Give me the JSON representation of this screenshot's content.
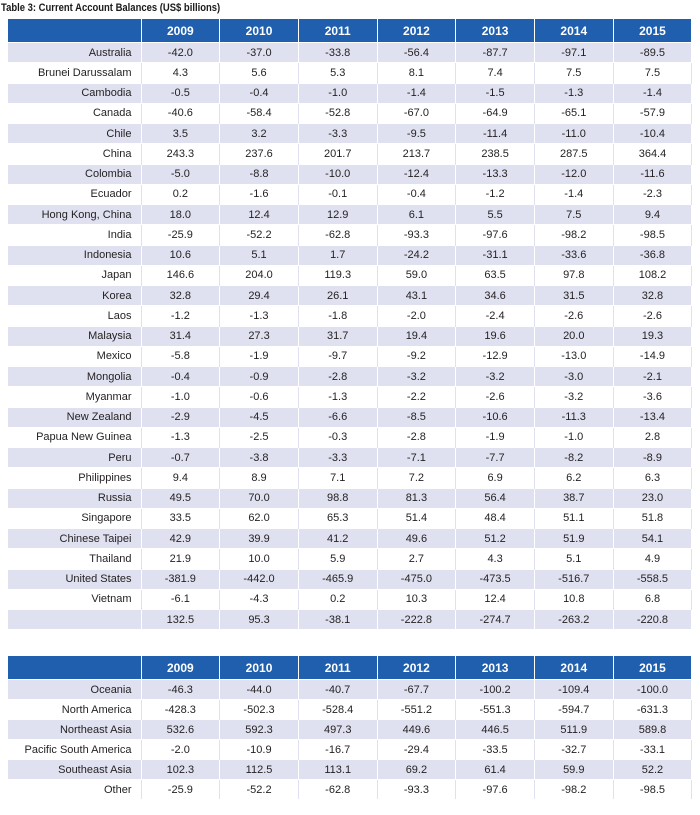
{
  "title": "Table 3: Current Account Balances (US$ billions)",
  "table1": {
    "years": [
      "2009",
      "2010",
      "2011",
      "2012",
      "2013",
      "2014",
      "2015"
    ],
    "rows": [
      {
        "name": "Australia",
        "values": [
          "-42.0",
          "-37.0",
          "-33.8",
          "-56.4",
          "-87.7",
          "-97.1",
          "-89.5"
        ]
      },
      {
        "name": "Brunei Darussalam",
        "values": [
          "4.3",
          "5.6",
          "5.3",
          "8.1",
          "7.4",
          "7.5",
          "7.5"
        ]
      },
      {
        "name": "Cambodia",
        "values": [
          "-0.5",
          "-0.4",
          "-1.0",
          "-1.4",
          "-1.5",
          "-1.3",
          "-1.4"
        ]
      },
      {
        "name": "Canada",
        "values": [
          "-40.6",
          "-58.4",
          "-52.8",
          "-67.0",
          "-64.9",
          "-65.1",
          "-57.9"
        ]
      },
      {
        "name": "Chile",
        "values": [
          "3.5",
          "3.2",
          "-3.3",
          "-9.5",
          "-11.4",
          "-11.0",
          "-10.4"
        ]
      },
      {
        "name": "China",
        "values": [
          "243.3",
          "237.6",
          "201.7",
          "213.7",
          "238.5",
          "287.5",
          "364.4"
        ]
      },
      {
        "name": "Colombia",
        "values": [
          "-5.0",
          "-8.8",
          "-10.0",
          "-12.4",
          "-13.3",
          "-12.0",
          "-11.6"
        ]
      },
      {
        "name": "Ecuador",
        "values": [
          "0.2",
          "-1.6",
          "-0.1",
          "-0.4",
          "-1.2",
          "-1.4",
          "-2.3"
        ]
      },
      {
        "name": "Hong Kong, China",
        "values": [
          "18.0",
          "12.4",
          "12.9",
          "6.1",
          "5.5",
          "7.5",
          "9.4"
        ]
      },
      {
        "name": "India",
        "values": [
          "-25.9",
          "-52.2",
          "-62.8",
          "-93.3",
          "-97.6",
          "-98.2",
          "-98.5"
        ]
      },
      {
        "name": "Indonesia",
        "values": [
          "10.6",
          "5.1",
          "1.7",
          "-24.2",
          "-31.1",
          "-33.6",
          "-36.8"
        ]
      },
      {
        "name": "Japan",
        "values": [
          "146.6",
          "204.0",
          "119.3",
          "59.0",
          "63.5",
          "97.8",
          "108.2"
        ]
      },
      {
        "name": "Korea",
        "values": [
          "32.8",
          "29.4",
          "26.1",
          "43.1",
          "34.6",
          "31.5",
          "32.8"
        ]
      },
      {
        "name": "Laos",
        "values": [
          "-1.2",
          "-1.3",
          "-1.8",
          "-2.0",
          "-2.4",
          "-2.6",
          "-2.6"
        ]
      },
      {
        "name": "Malaysia",
        "values": [
          "31.4",
          "27.3",
          "31.7",
          "19.4",
          "19.6",
          "20.0",
          "19.3"
        ]
      },
      {
        "name": "Mexico",
        "values": [
          "-5.8",
          "-1.9",
          "-9.7",
          "-9.2",
          "-12.9",
          "-13.0",
          "-14.9"
        ]
      },
      {
        "name": "Mongolia",
        "values": [
          "-0.4",
          "-0.9",
          "-2.8",
          "-3.2",
          "-3.2",
          "-3.0",
          "-2.1"
        ]
      },
      {
        "name": "Myanmar",
        "values": [
          "-1.0",
          "-0.6",
          "-1.3",
          "-2.2",
          "-2.6",
          "-3.2",
          "-3.6"
        ]
      },
      {
        "name": "New Zealand",
        "values": [
          "-2.9",
          "-4.5",
          "-6.6",
          "-8.5",
          "-10.6",
          "-11.3",
          "-13.4"
        ]
      },
      {
        "name": "Papua New Guinea",
        "values": [
          "-1.3",
          "-2.5",
          "-0.3",
          "-2.8",
          "-1.9",
          "-1.0",
          "2.8"
        ]
      },
      {
        "name": "Peru",
        "values": [
          "-0.7",
          "-3.8",
          "-3.3",
          "-7.1",
          "-7.7",
          "-8.2",
          "-8.9"
        ]
      },
      {
        "name": "Philippines",
        "values": [
          "9.4",
          "8.9",
          "7.1",
          "7.2",
          "6.9",
          "6.2",
          "6.3"
        ]
      },
      {
        "name": "Russia",
        "values": [
          "49.5",
          "70.0",
          "98.8",
          "81.3",
          "56.4",
          "38.7",
          "23.0"
        ]
      },
      {
        "name": "Singapore",
        "values": [
          "33.5",
          "62.0",
          "65.3",
          "51.4",
          "48.4",
          "51.1",
          "51.8"
        ]
      },
      {
        "name": "Chinese Taipei",
        "values": [
          "42.9",
          "39.9",
          "41.2",
          "49.6",
          "51.2",
          "51.9",
          "54.1"
        ]
      },
      {
        "name": "Thailand",
        "values": [
          "21.9",
          "10.0",
          "5.9",
          "2.7",
          "4.3",
          "5.1",
          "4.9"
        ]
      },
      {
        "name": "United States",
        "values": [
          "-381.9",
          "-442.0",
          "-465.9",
          "-475.0",
          "-473.5",
          "-516.7",
          "-558.5"
        ]
      },
      {
        "name": "Vietnam",
        "values": [
          "-6.1",
          "-4.3",
          "0.2",
          "10.3",
          "12.4",
          "10.8",
          "6.8"
        ]
      },
      {
        "name": "",
        "values": [
          "132.5",
          "95.3",
          "-38.1",
          "-222.8",
          "-274.7",
          "-263.2",
          "-220.8"
        ]
      }
    ]
  },
  "table2": {
    "years": [
      "2009",
      "2010",
      "2011",
      "2012",
      "2013",
      "2014",
      "2015"
    ],
    "rows": [
      {
        "name": "Oceania",
        "values": [
          "-46.3",
          "-44.0",
          "-40.7",
          "-67.7",
          "-100.2",
          "-109.4",
          "-100.0"
        ]
      },
      {
        "name": "North America",
        "values": [
          "-428.3",
          "-502.3",
          "-528.4",
          "-551.2",
          "-551.3",
          "-594.7",
          "-631.3"
        ]
      },
      {
        "name": "Northeast Asia",
        "values": [
          "532.6",
          "592.3",
          "497.3",
          "449.6",
          "446.5",
          "511.9",
          "589.8"
        ]
      },
      {
        "name": "Pacific South America",
        "values": [
          "-2.0",
          "-10.9",
          "-16.7",
          "-29.4",
          "-33.5",
          "-32.7",
          "-33.1"
        ]
      },
      {
        "name": "Southeast Asia",
        "values": [
          "102.3",
          "112.5",
          "113.1",
          "69.2",
          "61.4",
          "59.9",
          "52.2"
        ]
      },
      {
        "name": "Other",
        "values": [
          "-25.9",
          "-52.2",
          "-62.8",
          "-93.3",
          "-97.6",
          "-98.2",
          "-98.5"
        ]
      }
    ]
  }
}
